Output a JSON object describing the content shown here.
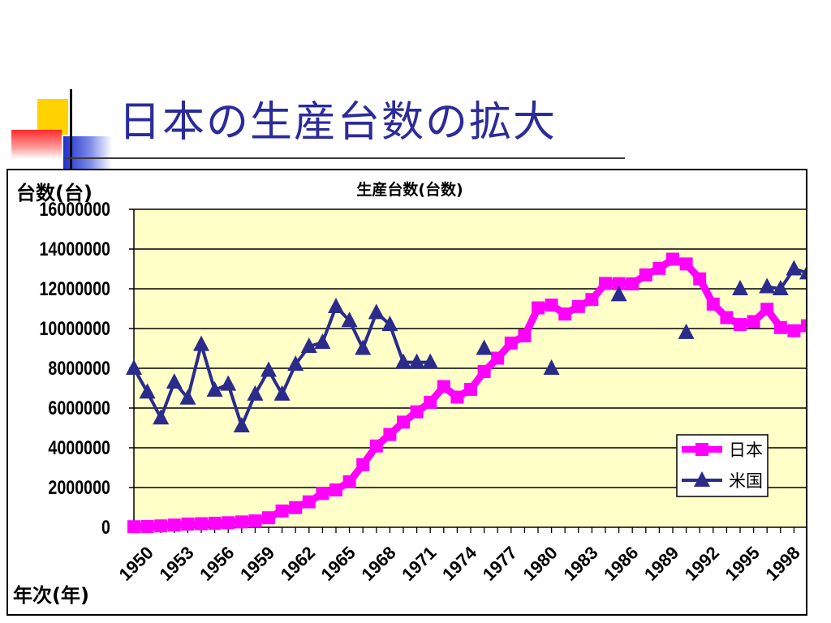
{
  "slide": {
    "title": "日本の生産台数の拡大"
  },
  "colors": {
    "title": "#2b2b9a",
    "plot_bg": "#ffffc8",
    "japan": "#ff00ff",
    "usa": "#2b2b8c"
  },
  "chart_data": {
    "type": "line",
    "title": "生産台数(台数)",
    "ylabel": "台数(台)",
    "xlabel": "年次(年)",
    "ylim": [
      0,
      16000000
    ],
    "yticks": [
      0,
      2000000,
      4000000,
      6000000,
      8000000,
      10000000,
      12000000,
      14000000,
      16000000
    ],
    "ytick_labels": [
      "0",
      "2000000",
      "4000000",
      "6000000",
      "8000000",
      "10000000",
      "12000000",
      "14000000",
      "16000000"
    ],
    "xlim": [
      1950,
      2000
    ],
    "xtick_labels": [
      "1950",
      "1953",
      "1956",
      "1959",
      "1962",
      "1965",
      "1968",
      "1971",
      "1974",
      "1977",
      "1980",
      "1983",
      "1986",
      "1989",
      "1992",
      "1995",
      "1998"
    ],
    "grid": true,
    "legend_position": "bottom-right",
    "series": [
      {
        "name": "日本",
        "marker": "square",
        "color": "#ff00ff",
        "segments": [
          {
            "x": [
              1950,
              1951,
              1952,
              1953,
              1954,
              1955,
              1956,
              1957,
              1958,
              1959,
              1960,
              1961,
              1962,
              1963,
              1964,
              1965,
              1966,
              1967,
              1968,
              1969,
              1970,
              1971,
              1972,
              1973,
              1974,
              1975,
              1976,
              1977,
              1978,
              1979,
              1980,
              1981,
              1982,
              1983,
              1984,
              1985,
              1986,
              1987,
              1988,
              1989,
              1990,
              1991,
              1992,
              1993,
              1994,
              1995,
              1996,
              1997,
              1998,
              1999,
              2000
            ],
            "y": [
              30000,
              40000,
              70000,
              110000,
              160000,
              180000,
              200000,
              230000,
              270000,
              320000,
              480000,
              820000,
              990000,
              1280000,
              1700000,
              1880000,
              2290000,
              3150000,
              4090000,
              4670000,
              5290000,
              5810000,
              6290000,
              7080000,
              6550000,
              6940000,
              7840000,
              8510000,
              9270000,
              9630000,
              11040000,
              11180000,
              10730000,
              11110000,
              11460000,
              12270000,
              12260000,
              12250000,
              12700000,
              13030000,
              13490000,
              13250000,
              12500000,
              11230000,
              10550000,
              10200000,
              10350000,
              10970000,
              10050000,
              9890000,
              10140000
            ]
          }
        ]
      },
      {
        "name": "米国",
        "marker": "triangle",
        "color": "#2b2b8c",
        "segments": [
          {
            "x": [
              1950,
              1951,
              1952,
              1953,
              1954,
              1955,
              1956,
              1957,
              1958,
              1959,
              1960,
              1961,
              1962,
              1963,
              1964,
              1965,
              1966,
              1967,
              1968,
              1969,
              1970,
              1971,
              1972
            ],
            "y": [
              8000000,
              6800000,
              5500000,
              7300000,
              6500000,
              9200000,
              6900000,
              7200000,
              5100000,
              6700000,
              7900000,
              6700000,
              8200000,
              9100000,
              9300000,
              11100000,
              10400000,
              9000000,
              10800000,
              10200000,
              8300000,
              8300000,
              8300000
            ]
          },
          {
            "x": [
              1976
            ],
            "y": [
              9000000
            ]
          },
          {
            "x": [
              1981
            ],
            "y": [
              8000000
            ]
          },
          {
            "x": [
              1986
            ],
            "y": [
              11700000
            ]
          },
          {
            "x": [
              1991
            ],
            "y": [
              9800000
            ]
          },
          {
            "x": [
              1995
            ],
            "y": [
              12000000
            ]
          },
          {
            "x": [
              1997,
              1998,
              1999,
              2000
            ],
            "y": [
              12100000,
              12000000,
              13000000,
              12800000
            ]
          }
        ]
      }
    ]
  }
}
